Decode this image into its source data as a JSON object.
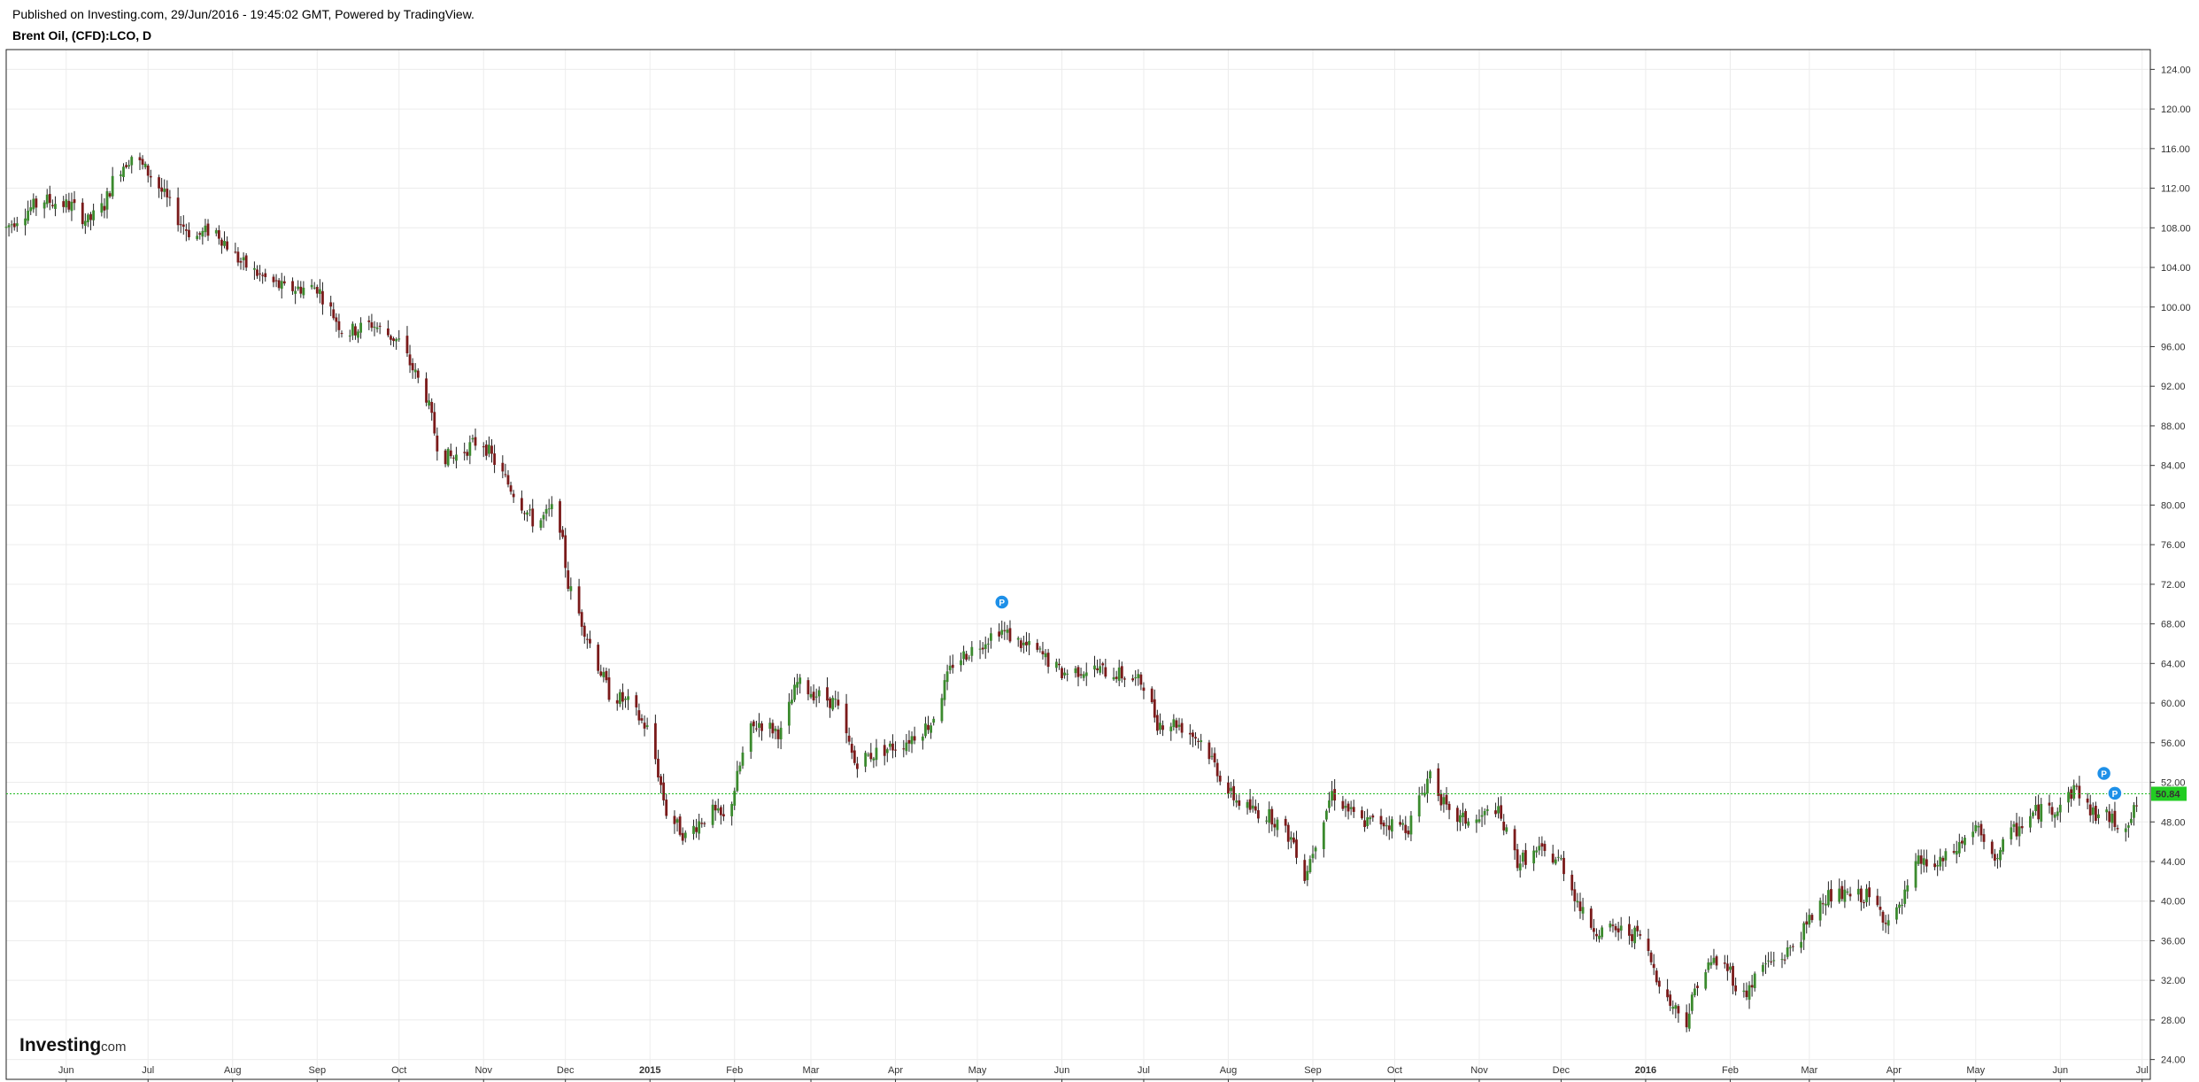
{
  "header": {
    "published": "Published on Investing.com, 29/Jun/2016 - 19:45:02 GMT, Powered by TradingView.",
    "symbol": "Brent Oil, (CFD):LCO, D"
  },
  "logo": {
    "main": "Investing",
    "suffix": ".com"
  },
  "colors": {
    "up": "#3b8a2e",
    "down": "#7a1a1a",
    "wick": "#222222",
    "grid": "#ececec",
    "price_line": "#22bb22",
    "price_badge": "#22cc22",
    "marker": "#1e90e8"
  },
  "chart_data": {
    "type": "candlestick",
    "ylim": [
      22,
      126
    ],
    "y_ticks": [
      "24.00",
      "28.00",
      "32.00",
      "36.00",
      "40.00",
      "44.00",
      "48.00",
      "52.00",
      "56.00",
      "60.00",
      "64.00",
      "68.00",
      "72.00",
      "76.00",
      "80.00",
      "84.00",
      "88.00",
      "92.00",
      "96.00",
      "100.00",
      "104.00",
      "108.00",
      "112.00",
      "116.00",
      "120.00",
      "124.00"
    ],
    "x_ticks": [
      {
        "label": "Jun",
        "bold": false,
        "day": 8
      },
      {
        "label": "Jul",
        "bold": false,
        "day": 38
      },
      {
        "label": "Aug",
        "bold": false,
        "day": 69
      },
      {
        "label": "Sep",
        "bold": false,
        "day": 100
      },
      {
        "label": "Oct",
        "bold": false,
        "day": 130
      },
      {
        "label": "Nov",
        "bold": false,
        "day": 161
      },
      {
        "label": "Dec",
        "bold": false,
        "day": 191
      },
      {
        "label": "2015",
        "bold": true,
        "day": 222
      },
      {
        "label": "Feb",
        "bold": false,
        "day": 253
      },
      {
        "label": "Mar",
        "bold": false,
        "day": 281
      },
      {
        "label": "Apr",
        "bold": false,
        "day": 312
      },
      {
        "label": "May",
        "bold": false,
        "day": 342
      },
      {
        "label": "Jun",
        "bold": false,
        "day": 373
      },
      {
        "label": "Jul",
        "bold": false,
        "day": 403
      },
      {
        "label": "Aug",
        "bold": false,
        "day": 434
      },
      {
        "label": "Sep",
        "bold": false,
        "day": 465
      },
      {
        "label": "Oct",
        "bold": false,
        "day": 495
      },
      {
        "label": "Nov",
        "bold": false,
        "day": 526
      },
      {
        "label": "Dec",
        "bold": false,
        "day": 556
      },
      {
        "label": "2016",
        "bold": true,
        "day": 587
      },
      {
        "label": "Feb",
        "bold": false,
        "day": 618
      },
      {
        "label": "Mar",
        "bold": false,
        "day": 647
      },
      {
        "label": "Apr",
        "bold": false,
        "day": 678
      },
      {
        "label": "May",
        "bold": false,
        "day": 708
      },
      {
        "label": "Jun",
        "bold": false,
        "day": 739
      },
      {
        "label": "Jul",
        "bold": false,
        "day": 769
      }
    ],
    "x_range_days": [
      -14,
      772
    ],
    "current_price": "50.84",
    "current_value": 50.84,
    "event_markers": [
      {
        "label": "P",
        "day": 351,
        "price": 70.2
      },
      {
        "label": "P",
        "day": 755,
        "price": 52.9
      },
      {
        "label": "P",
        "day": 759,
        "price": 50.9
      }
    ],
    "anchors": [
      [
        -14,
        108.0
      ],
      [
        -8,
        109.5
      ],
      [
        0,
        110.8
      ],
      [
        10,
        110.2
      ],
      [
        16,
        108.6
      ],
      [
        22,
        110.3
      ],
      [
        26,
        113.5
      ],
      [
        32,
        115.3
      ],
      [
        40,
        113.0
      ],
      [
        50,
        108.5
      ],
      [
        55,
        107.0
      ],
      [
        62,
        108.0
      ],
      [
        72,
        104.5
      ],
      [
        80,
        103.0
      ],
      [
        88,
        101.8
      ],
      [
        100,
        102.0
      ],
      [
        110,
        97.3
      ],
      [
        120,
        98.3
      ],
      [
        130,
        96.5
      ],
      [
        140,
        91.0
      ],
      [
        145,
        85.0
      ],
      [
        150,
        84.8
      ],
      [
        160,
        86.7
      ],
      [
        168,
        83.0
      ],
      [
        180,
        78.0
      ],
      [
        188,
        80.0
      ],
      [
        192,
        72.0
      ],
      [
        200,
        66.0
      ],
      [
        207,
        61.0
      ],
      [
        214,
        60.0
      ],
      [
        222,
        57.0
      ],
      [
        228,
        49.0
      ],
      [
        235,
        46.5
      ],
      [
        240,
        48.0
      ],
      [
        245,
        49.0
      ],
      [
        250,
        48.0
      ],
      [
        258,
        57.0
      ],
      [
        262,
        58.0
      ],
      [
        270,
        57.0
      ],
      [
        276,
        62.0
      ],
      [
        282,
        61.0
      ],
      [
        290,
        60.0
      ],
      [
        297,
        54.0
      ],
      [
        305,
        55.0
      ],
      [
        315,
        56.0
      ],
      [
        325,
        58.0
      ],
      [
        333,
        64.0
      ],
      [
        343,
        66.0
      ],
      [
        350,
        67.5
      ],
      [
        358,
        66.0
      ],
      [
        365,
        65.0
      ],
      [
        373,
        63.0
      ],
      [
        383,
        63.5
      ],
      [
        393,
        63.0
      ],
      [
        403,
        62.0
      ],
      [
        408,
        58.0
      ],
      [
        415,
        58.0
      ],
      [
        425,
        56.0
      ],
      [
        434,
        51.0
      ],
      [
        440,
        49.5
      ],
      [
        450,
        48.5
      ],
      [
        458,
        46.0
      ],
      [
        462,
        42.5
      ],
      [
        467,
        47.0
      ],
      [
        472,
        51.0
      ],
      [
        482,
        48.0
      ],
      [
        490,
        48.0
      ],
      [
        500,
        47.5
      ],
      [
        508,
        53.0
      ],
      [
        515,
        48.5
      ],
      [
        525,
        48.0
      ],
      [
        532,
        49.5
      ],
      [
        540,
        44.0
      ],
      [
        548,
        45.0
      ],
      [
        556,
        44.0
      ],
      [
        565,
        38.0
      ],
      [
        570,
        37.0
      ],
      [
        578,
        37.0
      ],
      [
        585,
        36.5
      ],
      [
        595,
        30.0
      ],
      [
        602,
        28.0
      ],
      [
        606,
        32.0
      ],
      [
        612,
        34.0
      ],
      [
        618,
        33.0
      ],
      [
        622,
        30.0
      ],
      [
        630,
        33.5
      ],
      [
        638,
        34.5
      ],
      [
        645,
        37.0
      ],
      [
        652,
        40.5
      ],
      [
        660,
        40.5
      ],
      [
        668,
        40.5
      ],
      [
        676,
        38.0
      ],
      [
        680,
        39.0
      ],
      [
        687,
        44.0
      ],
      [
        694,
        43.5
      ],
      [
        700,
        45.0
      ],
      [
        708,
        47.5
      ],
      [
        714,
        44.0
      ],
      [
        720,
        46.5
      ],
      [
        730,
        49.0
      ],
      [
        738,
        49.5
      ],
      [
        745,
        51.5
      ],
      [
        750,
        49.0
      ],
      [
        756,
        48.5
      ],
      [
        762,
        47.5
      ],
      [
        766,
        49.0
      ],
      [
        769,
        50.84
      ]
    ]
  }
}
